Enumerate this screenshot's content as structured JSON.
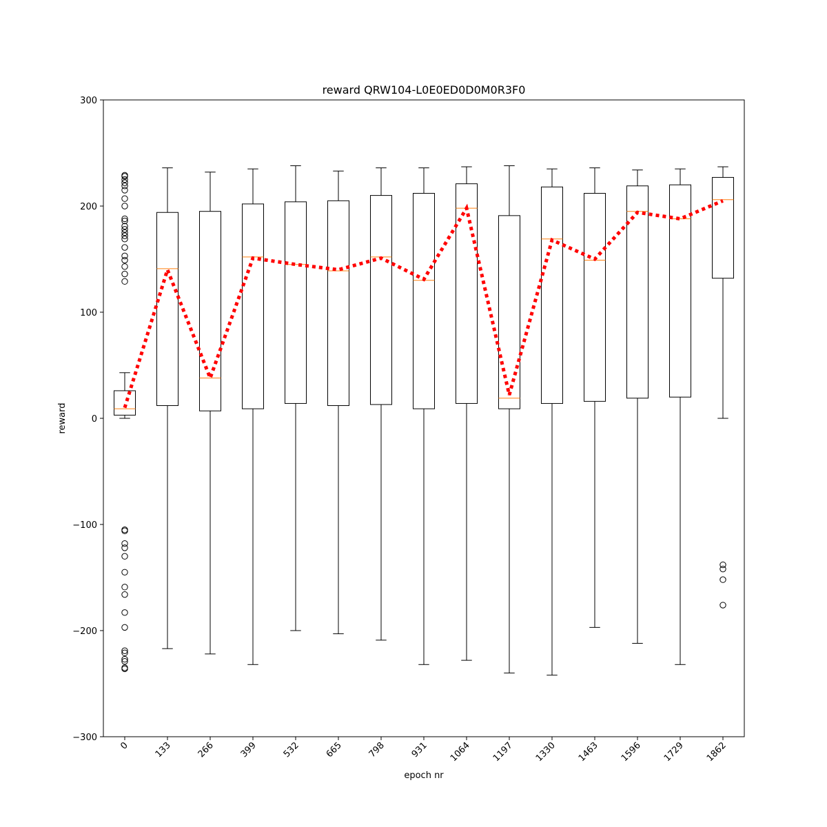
{
  "chart_data": {
    "type": "boxplot",
    "title": "reward QRW104-L0E0ED0D0M0R3F0",
    "xlabel": "epoch nr",
    "ylabel": "reward",
    "ylim": [
      -300,
      300
    ],
    "yticks": [
      -300,
      -200,
      -100,
      0,
      100,
      200,
      300
    ],
    "yticks_labels": [
      "−300",
      "−200",
      "−100",
      "0",
      "100",
      "200",
      "300"
    ],
    "grid": false,
    "categories": [
      "0",
      "133",
      "266",
      "399",
      "532",
      "665",
      "798",
      "931",
      "1064",
      "1197",
      "1330",
      "1463",
      "1596",
      "1729",
      "1862"
    ],
    "boxes": [
      {
        "whisker_low": 0,
        "q1": 3,
        "median": 9,
        "q3": 26,
        "whisker_high": 43,
        "outliers": [
          229,
          228,
          225,
          222,
          219,
          215,
          207,
          200,
          188,
          186,
          181,
          178,
          175,
          172,
          169,
          161,
          153,
          149,
          143,
          136,
          129,
          -105,
          -106,
          -118,
          -122,
          -130,
          -145,
          -159,
          -166,
          -183,
          -197,
          -219,
          -221,
          -227,
          -229,
          -235,
          -236
        ]
      },
      {
        "whisker_low": -217,
        "q1": 12,
        "median": 141,
        "q3": 194,
        "whisker_high": 236,
        "outliers": []
      },
      {
        "whisker_low": -222,
        "q1": 7,
        "median": 38,
        "q3": 195,
        "whisker_high": 232,
        "outliers": []
      },
      {
        "whisker_low": -232,
        "q1": 9,
        "median": 152,
        "q3": 202,
        "whisker_high": 235,
        "outliers": []
      },
      {
        "whisker_low": -200,
        "q1": 14,
        "median": 145,
        "q3": 204,
        "whisker_high": 238,
        "outliers": []
      },
      {
        "whisker_low": -203,
        "q1": 12,
        "median": 139,
        "q3": 205,
        "whisker_high": 233,
        "outliers": []
      },
      {
        "whisker_low": -209,
        "q1": 13,
        "median": 152,
        "q3": 210,
        "whisker_high": 236,
        "outliers": []
      },
      {
        "whisker_low": -232,
        "q1": 9,
        "median": 130,
        "q3": 212,
        "whisker_high": 236,
        "outliers": []
      },
      {
        "whisker_low": -228,
        "q1": 14,
        "median": 198,
        "q3": 221,
        "whisker_high": 237,
        "outliers": []
      },
      {
        "whisker_low": -240,
        "q1": 9,
        "median": 19,
        "q3": 191,
        "whisker_high": 238,
        "outliers": []
      },
      {
        "whisker_low": -242,
        "q1": 14,
        "median": 169,
        "q3": 218,
        "whisker_high": 235,
        "outliers": []
      },
      {
        "whisker_low": -197,
        "q1": 16,
        "median": 149,
        "q3": 212,
        "whisker_high": 236,
        "outliers": []
      },
      {
        "whisker_low": -212,
        "q1": 19,
        "median": 195,
        "q3": 219,
        "whisker_high": 234,
        "outliers": []
      },
      {
        "whisker_low": -232,
        "q1": 20,
        "median": 188,
        "q3": 220,
        "whisker_high": 235,
        "outliers": []
      },
      {
        "whisker_low": 0,
        "q1": 132,
        "median": 206,
        "q3": 227,
        "whisker_high": 237,
        "outliers": [
          -138,
          -142,
          -152,
          -176
        ]
      }
    ],
    "trend_line": {
      "style": "dotted",
      "color": "#ff0000",
      "values": [
        10,
        140,
        38,
        151,
        145,
        140,
        151,
        131,
        198,
        22,
        168,
        150,
        194,
        188,
        205
      ]
    },
    "colors": {
      "median": "#ff7f0e",
      "box": "#000000",
      "trend": "#ff0000"
    }
  }
}
